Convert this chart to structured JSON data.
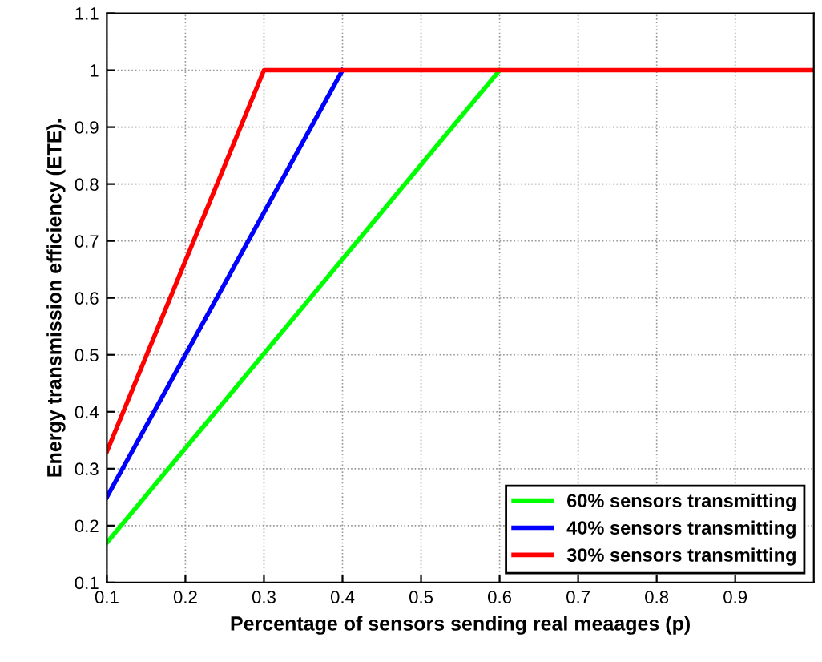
{
  "chart_data": {
    "type": "line",
    "xlabel": "Percentage of sensors sending real meaages (p)",
    "ylabel": "Energy transmission efficiency (ETE).",
    "series": [
      {
        "name": "60% sensors transmitting",
        "color": "#00ff00",
        "x": [
          0.1,
          0.6
        ],
        "values": [
          0.17,
          1
        ]
      },
      {
        "name": "40% sensors transmitting",
        "color": "#0000ff",
        "x": [
          0.1,
          0.4
        ],
        "values": [
          0.25,
          1
        ]
      },
      {
        "name": "30% sensors transmitting",
        "color": "#ff0000",
        "x": [
          0.1,
          0.3,
          1.0
        ],
        "values": [
          0.33,
          1,
          1
        ]
      }
    ],
    "xlim": [
      0.1,
      1.0
    ],
    "ylim": [
      0.1,
      1.1
    ],
    "xticks": [
      0.1,
      0.2,
      0.3,
      0.4,
      0.5,
      0.6,
      0.7,
      0.8,
      0.9
    ],
    "yticks": [
      0.1,
      0.2,
      0.3,
      0.4,
      0.5,
      0.6,
      0.7,
      0.8,
      0.9,
      1,
      1.1
    ],
    "grid": true,
    "legend": "bottom right",
    "marker": "none",
    "line_style": "solid"
  }
}
